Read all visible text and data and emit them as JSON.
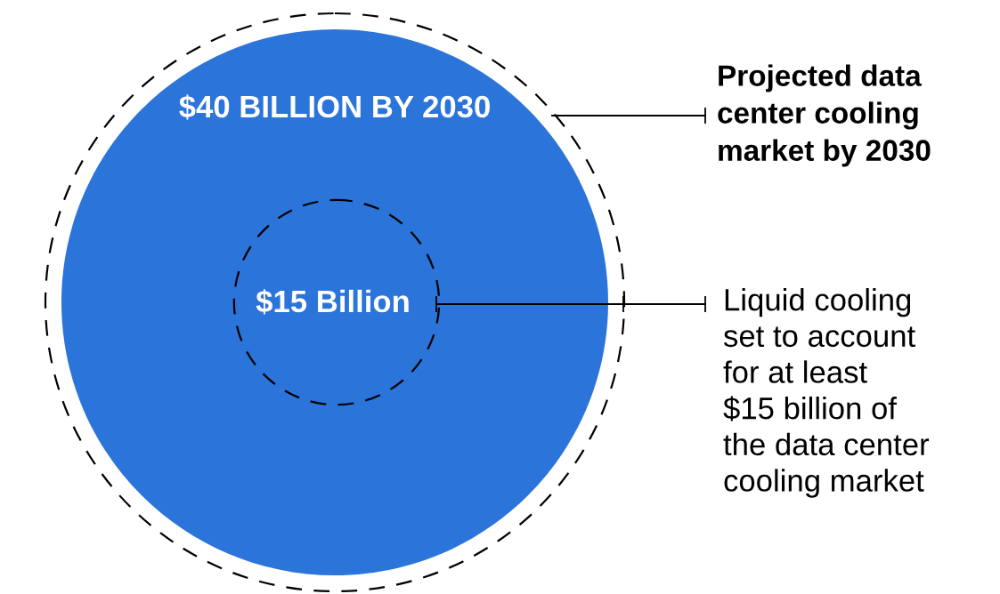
{
  "chart_data": {
    "type": "other",
    "values": [
      40,
      15
    ],
    "value_labels": [
      "$40 BILLION BY 2030",
      "$15 Billion"
    ],
    "color": "#2b74d9",
    "annotations": [
      "Projected data\ncenter cooling\nmarket by 2030",
      "Liquid cooling\nset to account\nfor at least\n$15 billion of\nthe data center\ncooling market"
    ]
  }
}
